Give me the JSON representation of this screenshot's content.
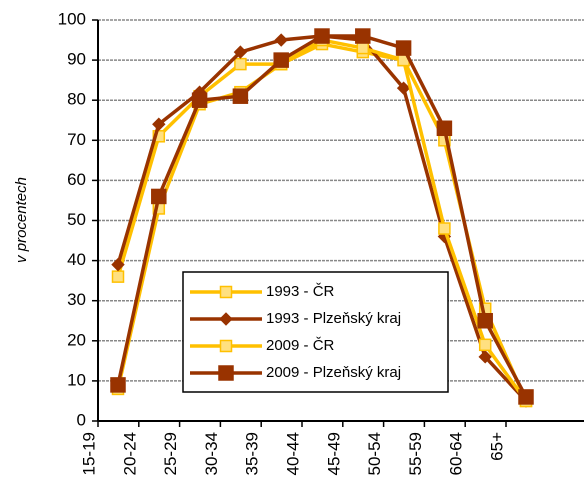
{
  "chart_data": {
    "type": "line",
    "y_label": "v procentech",
    "categories": [
      "15-19",
      "20-24",
      "25-29",
      "30-34",
      "35-39",
      "40-44",
      "45-49",
      "50-54",
      "55-59",
      "60-64",
      "65+"
    ],
    "series": [
      {
        "name": "1993 - ČR",
        "color": "#FFC000",
        "marker": "square",
        "marker_fill": "#FFE080",
        "values": [
          36,
          71,
          81,
          89,
          89,
          94,
          92,
          90,
          70,
          28,
          5
        ]
      },
      {
        "name": "1993 - Plzeňský kraj",
        "color": "#993300",
        "marker": "diamond",
        "marker_fill": "#993300",
        "values": [
          39,
          74,
          82,
          92,
          95,
          96,
          95,
          83,
          46,
          16,
          5
        ]
      },
      {
        "name": "2009 - ČR",
        "color": "#FFC000",
        "marker": "square",
        "marker_fill": "#FFE080",
        "values": [
          8,
          53,
          79,
          82,
          89,
          95,
          93,
          90,
          48,
          19,
          5
        ]
      },
      {
        "name": "2009 - Plzeňský kraj",
        "color": "#993300",
        "marker": "bigsquare",
        "marker_fill": "#993300",
        "values": [
          9,
          56,
          80,
          81,
          90,
          96,
          96,
          93,
          73,
          25,
          6
        ]
      }
    ],
    "ylim": [
      0,
      100
    ],
    "yticks": [
      0,
      10,
      20,
      30,
      40,
      50,
      60,
      70,
      80,
      90,
      100
    ],
    "grid": true
  }
}
